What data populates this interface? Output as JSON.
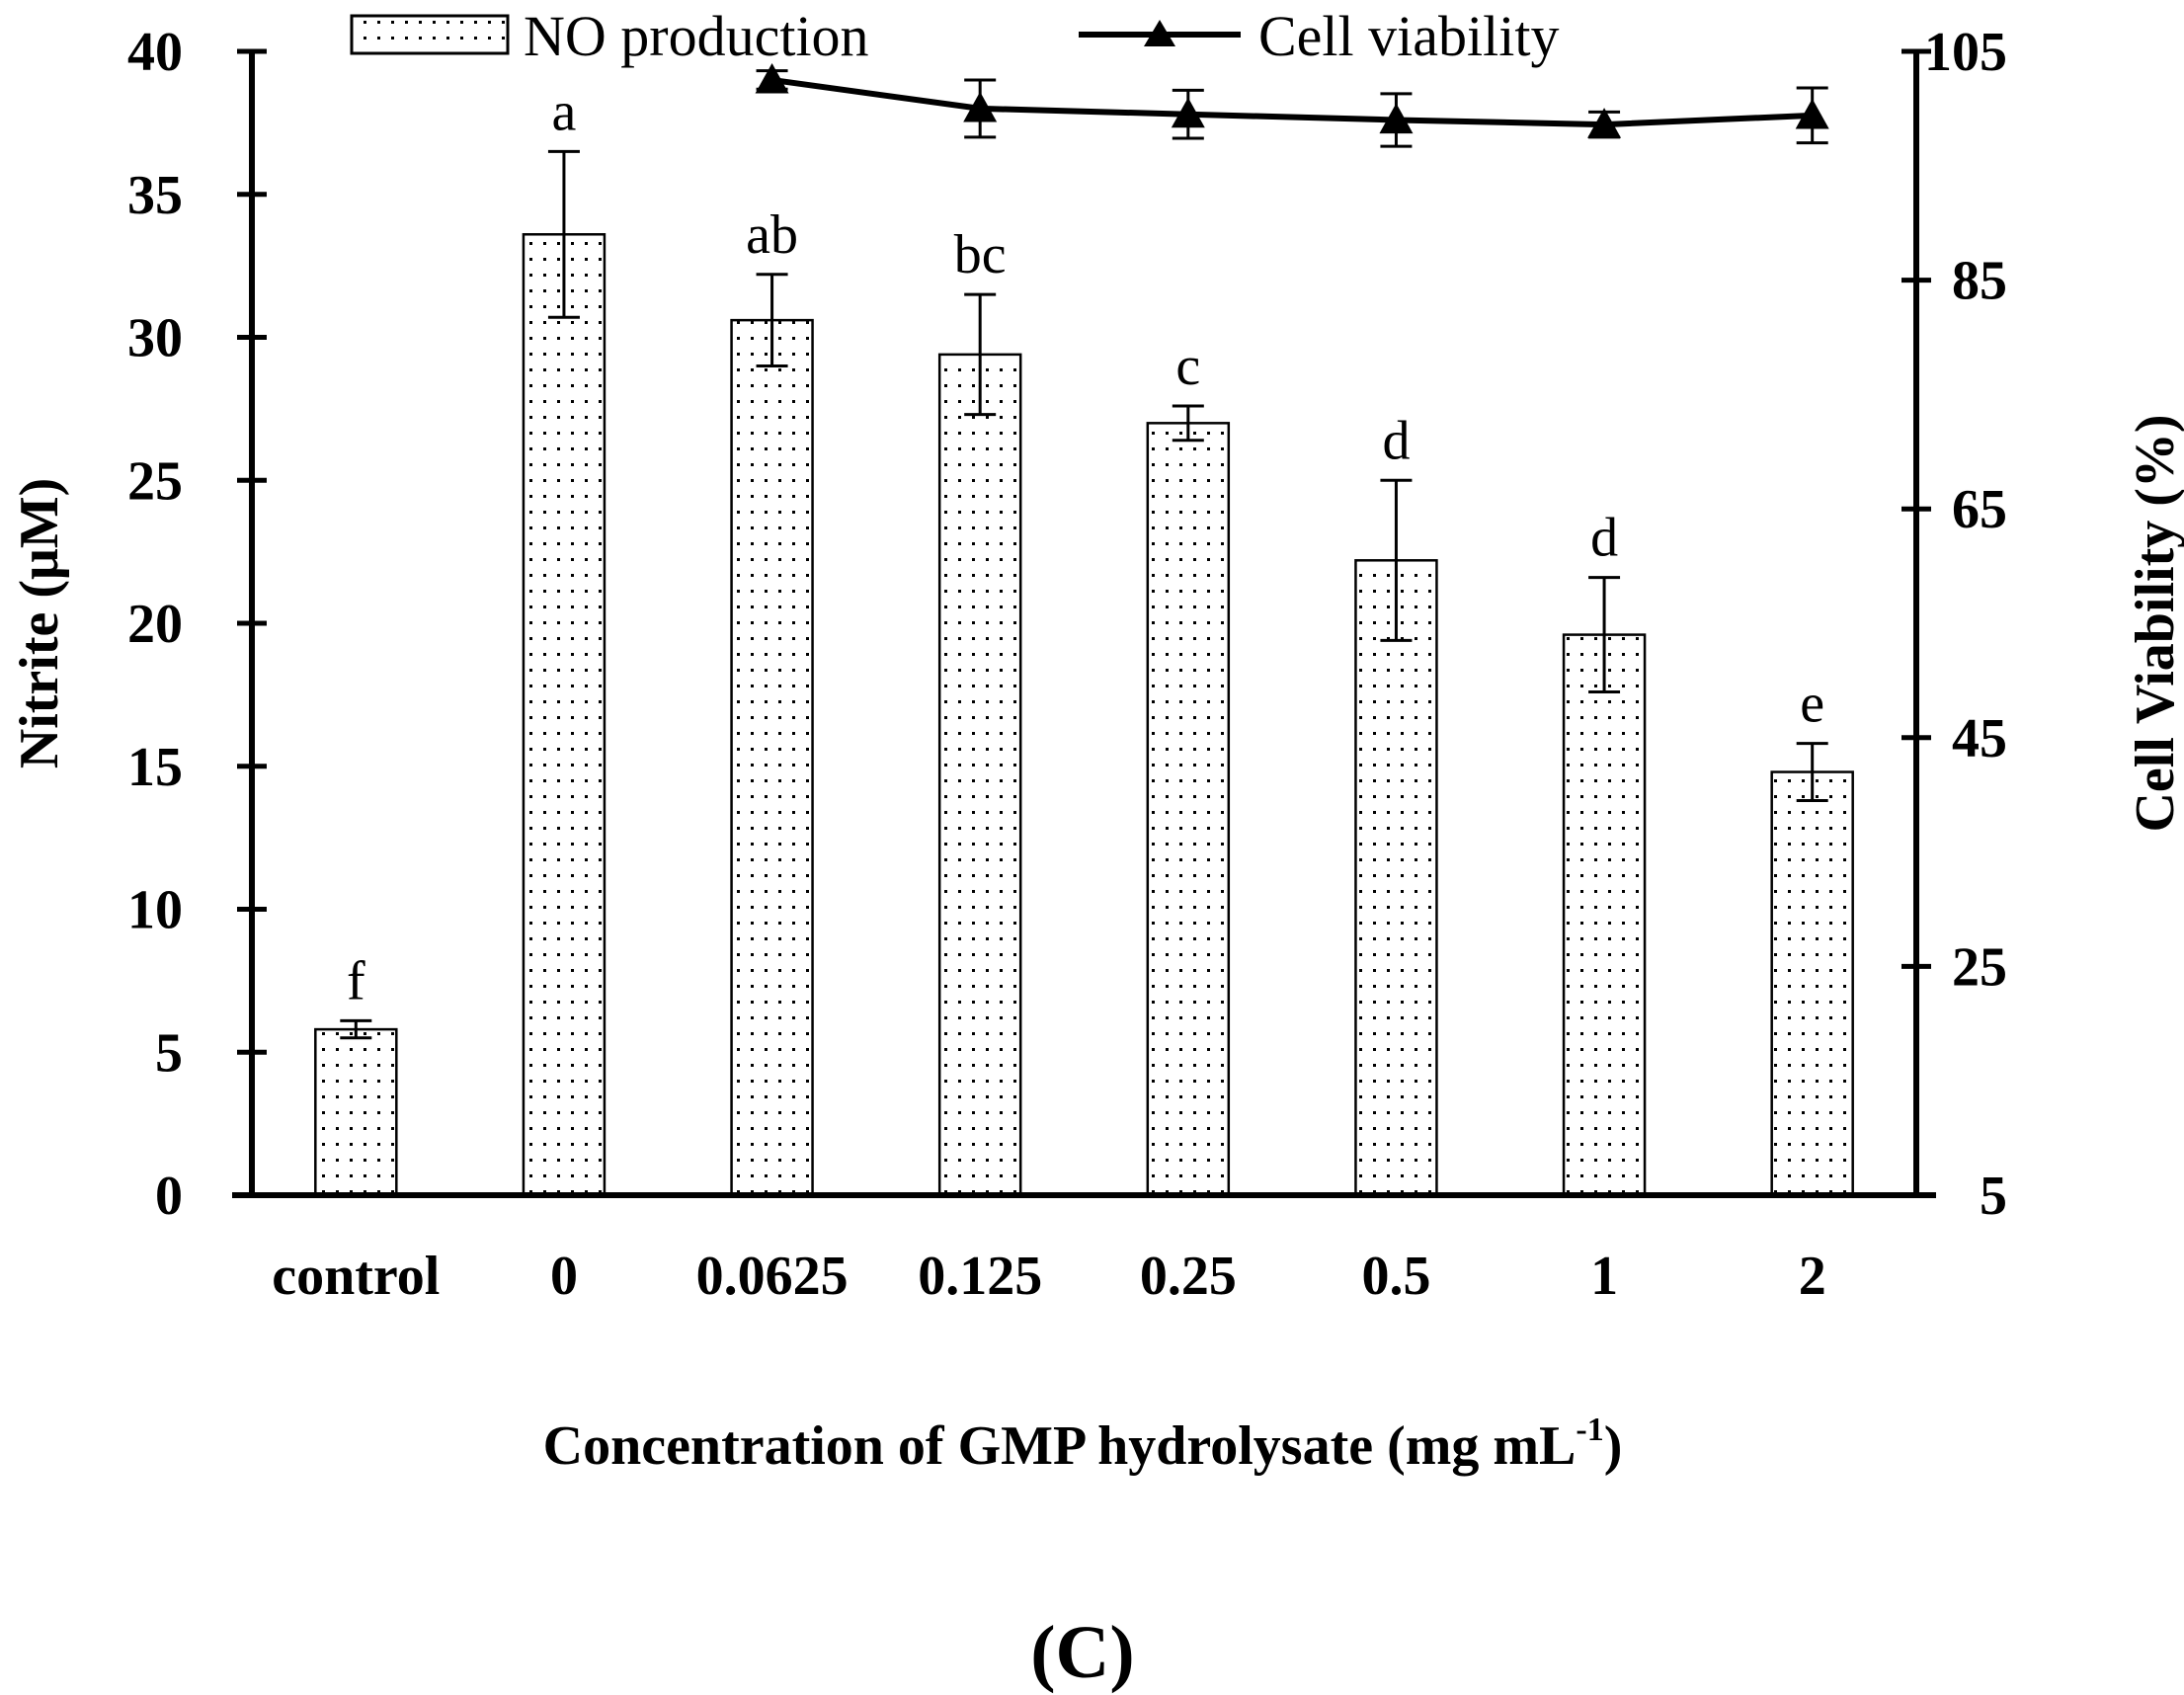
{
  "chart_data": {
    "type": "bar",
    "categories": [
      "control",
      "0",
      "0.0625",
      "0.125",
      "0.25",
      "0.5",
      "1",
      "2"
    ],
    "xlabel": "Concentration of GMP hydrolysate (mg mL",
    "xlabel_superscript": "-1",
    "xlabel_close": ")",
    "ylabel_left": "Nitrite (μM)",
    "ylabel_right": "Cell Viability (%)",
    "ylim_left": [
      0,
      40
    ],
    "yticks_left": [
      "0",
      "5",
      "10",
      "15",
      "20",
      "25",
      "30",
      "35",
      "40"
    ],
    "ylim_right": [
      5,
      105
    ],
    "yticks_right": [
      "5",
      "25",
      "45",
      "65",
      "85",
      "105"
    ],
    "panel_label": "(C)",
    "legend_placement": "top",
    "legend": {
      "bars": "NO production",
      "line": "Cell viability"
    },
    "series": [
      {
        "name": "NO production",
        "kind": "bar",
        "axis": "left",
        "pattern": "dotted",
        "values": [
          5.8,
          33.6,
          30.6,
          29.4,
          27.0,
          22.2,
          19.6,
          14.8
        ],
        "errors": [
          0.3,
          2.9,
          1.6,
          2.1,
          0.6,
          2.8,
          2.0,
          1.0
        ],
        "significance": [
          "f",
          "a",
          "ab",
          "bc",
          "c",
          "d",
          "d",
          "e"
        ]
      },
      {
        "name": "Cell viability",
        "kind": "line",
        "axis": "right",
        "marker": "triangle",
        "color": "#000000",
        "x": [
          "0.0625",
          "0.125",
          "0.25",
          "0.5",
          "1",
          "2"
        ],
        "values": [
          102.5,
          100.0,
          99.5,
          99.0,
          98.6,
          99.4
        ],
        "errors": [
          0.8,
          2.5,
          2.1,
          2.3,
          1.1,
          2.4
        ]
      }
    ]
  }
}
